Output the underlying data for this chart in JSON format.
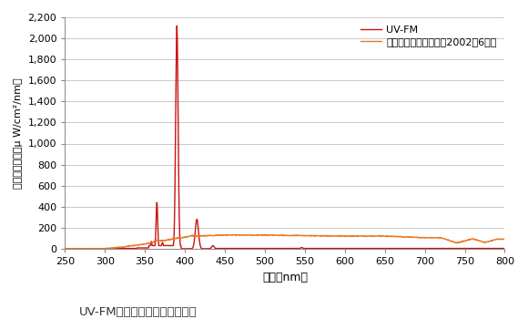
{
  "title": "UV-FMと太陽光の波長分光分布",
  "xlabel": "波長（nm）",
  "ylabel": "分光放射照度（μ W/cm²/nm）",
  "xlim": [
    250,
    800
  ],
  "ylim": [
    0,
    2200
  ],
  "yticks": [
    0,
    200,
    400,
    600,
    800,
    1000,
    1200,
    1400,
    1600,
    1800,
    2000,
    2200
  ],
  "xticks": [
    250,
    300,
    350,
    400,
    450,
    500,
    550,
    600,
    650,
    700,
    750,
    800
  ],
  "legend_uvfm": "UV-FM",
  "legend_sun": "太陽光、さいたま市（2002年6月）",
  "color_uvfm": "#cc1111",
  "color_sun": "#e87722",
  "bg_color": "#ffffff",
  "grid_color": "#c8c8c8"
}
